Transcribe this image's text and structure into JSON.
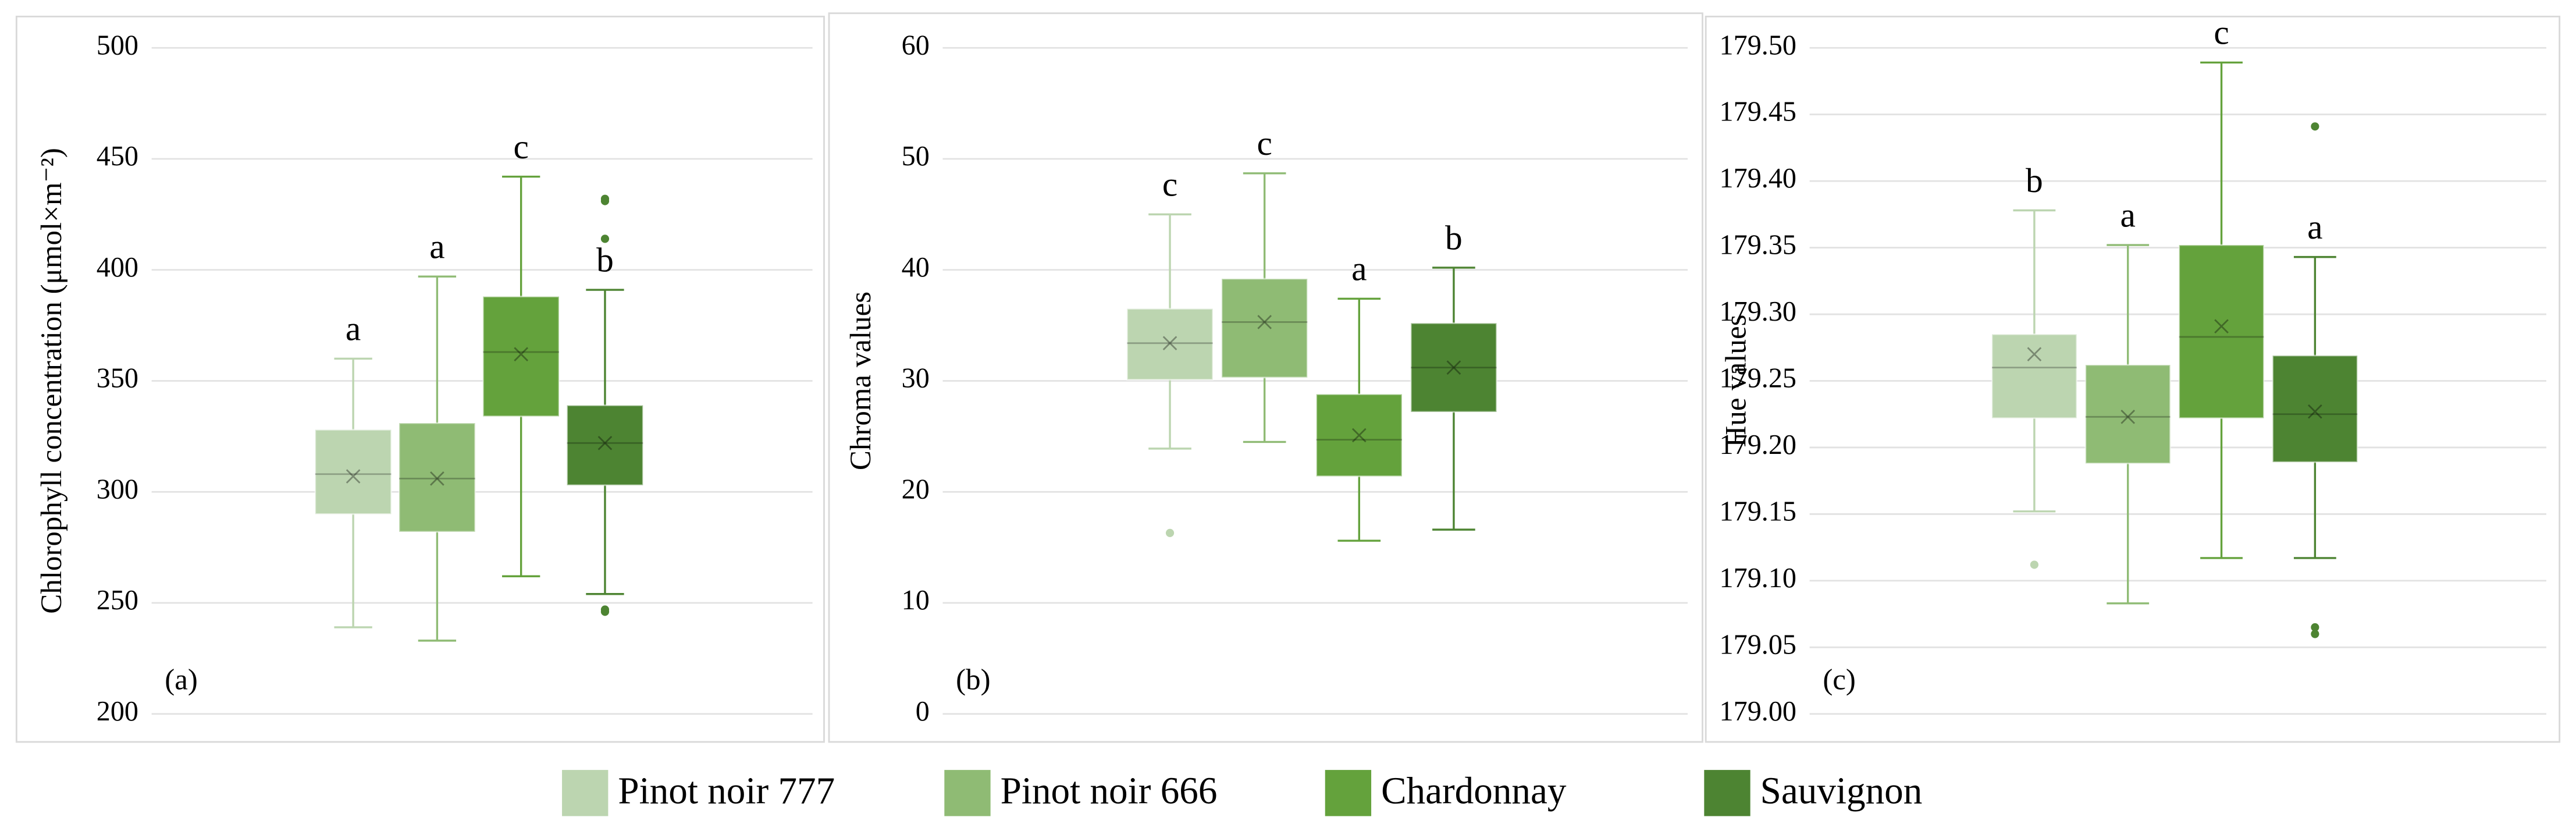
{
  "chart_data": [
    {
      "type": "box",
      "panel_label": "(a)",
      "y_label": "Chlorophyll concentration (μmol×m⁻²)",
      "ylim": [
        200,
        500
      ],
      "yticks": [
        200,
        250,
        300,
        350,
        400,
        450,
        500
      ],
      "grid": true,
      "series": [
        {
          "min": 239,
          "q1": 290,
          "median": 308,
          "q3": 328,
          "max": 360,
          "mean": 307,
          "outliers": [],
          "label": "a"
        },
        {
          "min": 233,
          "q1": 282,
          "median": 306,
          "q3": 331,
          "max": 397,
          "mean": 306,
          "outliers": [],
          "label": "a"
        },
        {
          "min": 262,
          "q1": 334,
          "median": 363,
          "q3": 388,
          "max": 442,
          "mean": 362,
          "outliers": [],
          "label": "c"
        },
        {
          "min": 254,
          "q1": 303,
          "median": 322,
          "q3": 339,
          "max": 391,
          "mean": 322,
          "outliers": [
            432,
            431,
            414,
            247,
            246
          ],
          "label": "b"
        }
      ]
    },
    {
      "type": "box",
      "panel_label": "(b)",
      "y_label": "Chroma values",
      "ylim": [
        0,
        60
      ],
      "yticks": [
        0,
        10,
        20,
        30,
        40,
        50,
        60
      ],
      "grid": true,
      "series": [
        {
          "min": 23.9,
          "q1": 30.1,
          "median": 33.4,
          "q3": 36.5,
          "max": 45,
          "mean": 33.4,
          "outliers": [
            16.3
          ],
          "label": "c"
        },
        {
          "min": 24.5,
          "q1": 30.3,
          "median": 35.3,
          "q3": 39.2,
          "max": 48.7,
          "mean": 35.3,
          "outliers": [],
          "label": "c"
        },
        {
          "min": 15.6,
          "q1": 21.4,
          "median": 24.7,
          "q3": 28.8,
          "max": 37.4,
          "mean": 25.1,
          "outliers": [],
          "label": "a"
        },
        {
          "min": 16.6,
          "q1": 27.2,
          "median": 31.2,
          "q3": 35.2,
          "max": 40.2,
          "mean": 31.2,
          "outliers": [],
          "label": "b"
        }
      ]
    },
    {
      "type": "box",
      "panel_label": "(c)",
      "y_label": "Hue values",
      "ylim": [
        179.0,
        179.5
      ],
      "yticks": [
        {
          "value": 179.0,
          "label": "179.00"
        },
        179.05,
        {
          "value": 179.1,
          "label": "179.10"
        },
        179.15,
        {
          "value": 179.2,
          "label": "179.20"
        },
        179.25,
        {
          "value": 179.3,
          "label": "179.30"
        },
        179.35,
        {
          "value": 179.4,
          "label": "179.40"
        },
        179.45,
        {
          "value": 179.5,
          "label": "179.50"
        }
      ],
      "grid": true,
      "series": [
        {
          "min": 179.152,
          "q1": 179.222,
          "median": 179.26,
          "q3": 179.285,
          "max": 179.378,
          "mean": 179.27,
          "outliers": [
            179.112
          ],
          "label": "b"
        },
        {
          "min": 179.083,
          "q1": 179.188,
          "median": 179.223,
          "q3": 179.262,
          "max": 179.352,
          "mean": 179.223,
          "outliers": [],
          "label": "a"
        },
        {
          "min": 179.117,
          "q1": 179.222,
          "median": 179.283,
          "q3": 179.352,
          "max": 179.489,
          "mean": 179.291,
          "outliers": [],
          "label": "c"
        },
        {
          "min": 179.117,
          "q1": 179.189,
          "median": 179.225,
          "q3": 179.269,
          "max": 179.343,
          "mean": 179.227,
          "outliers": [
            179.441,
            179.065,
            179.06
          ],
          "label": "a"
        }
      ]
    }
  ],
  "legend": {
    "entries": [
      {
        "name": "Pinot noir 777",
        "color": "#bcd5b0"
      },
      {
        "name": "Pinot noir 666",
        "color": "#8fbb74"
      },
      {
        "name": "Chardonnay",
        "color": "#64a23c"
      },
      {
        "name": "Sauvignon",
        "color": "#4d8432"
      }
    ]
  }
}
